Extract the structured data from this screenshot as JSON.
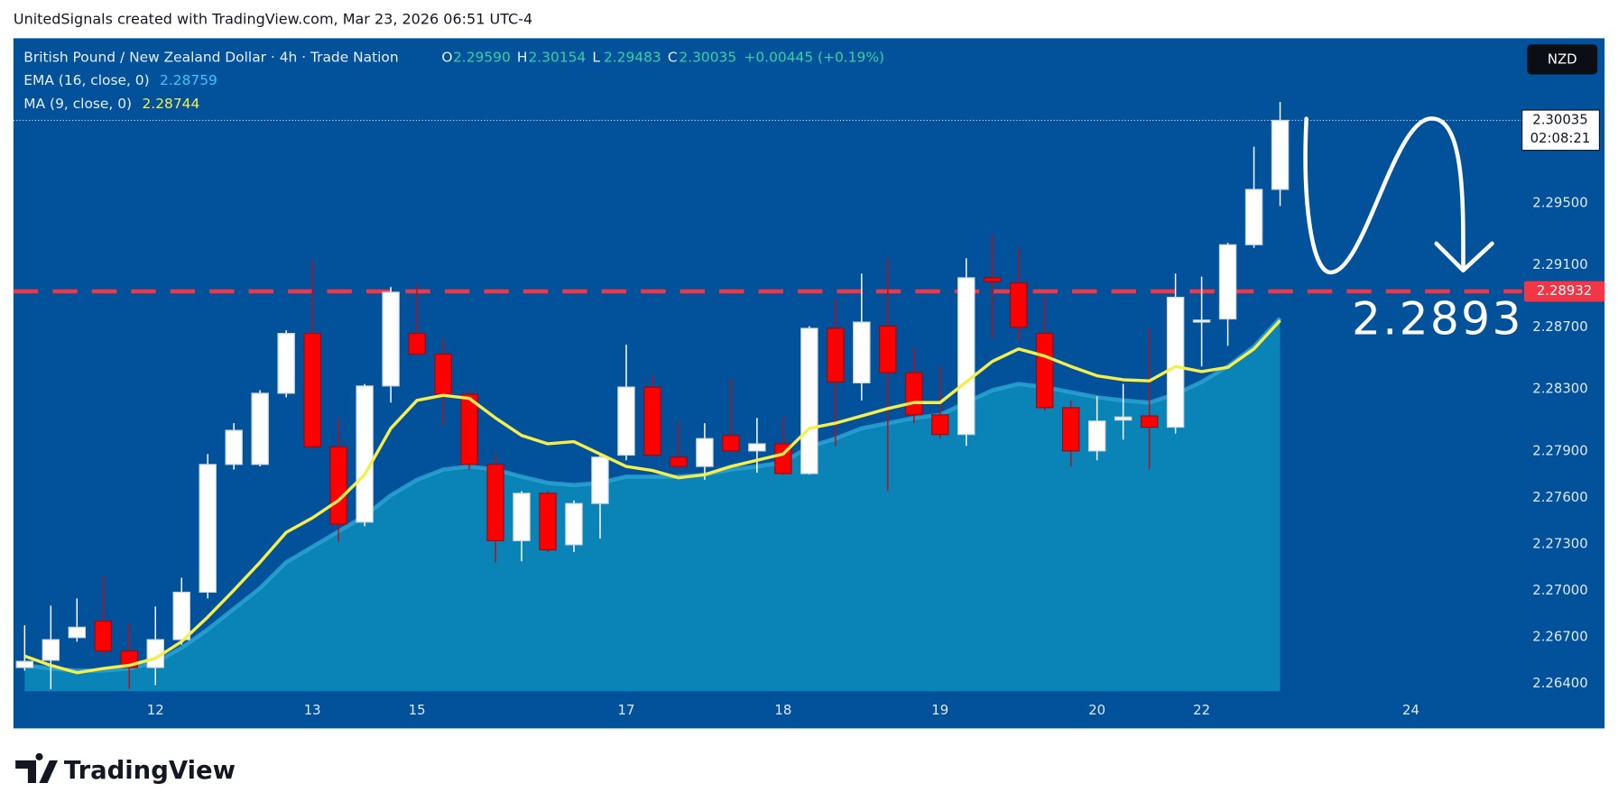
{
  "header": "UnitedSignals created with TradingView.com, Mar 23, 2026 06:51 UTC-4",
  "footer": "TradingView",
  "chart_data": {
    "type": "candlestick",
    "series": [
      {
        "name": "British Pound / New Zealand Dollar · 4h · Trade Nation",
        "up_color": "#ffffff",
        "down_color": "#ff0000",
        "open": [
          2.26506,
          2.26553,
          2.26699,
          2.26806,
          2.26613,
          2.26506,
          2.26686,
          2.26992,
          2.27816,
          2.27816,
          2.28275,
          2.28661,
          2.2793,
          2.27444,
          2.28322,
          2.28661,
          2.28528,
          2.28269,
          2.27816,
          2.27324,
          2.2763,
          2.27298,
          2.27564,
          2.27876,
          2.28315,
          2.27863,
          2.27803,
          2.28003,
          2.27903,
          2.27949,
          2.27757,
          2.28694,
          2.28342,
          2.28708,
          2.28408,
          2.28136,
          2.28009,
          2.2902,
          2.28987,
          2.28661,
          2.28182,
          2.27903,
          2.28102,
          2.28129,
          2.28056,
          2.28734,
          2.28754,
          2.29233,
          2.2959
        ],
        "high": [
          2.26779,
          2.26905,
          2.26952,
          2.27098,
          2.26786,
          2.26899,
          2.27085,
          2.27883,
          2.28082,
          2.28295,
          2.28681,
          2.29133,
          2.28116,
          2.28335,
          2.2896,
          2.2898,
          2.28628,
          2.28295,
          2.27883,
          2.27644,
          2.27644,
          2.27584,
          2.27883,
          2.28588,
          2.28388,
          2.28096,
          2.28082,
          2.28368,
          2.28116,
          2.28122,
          2.28708,
          2.2888,
          2.29047,
          2.29146,
          2.28568,
          2.28448,
          2.29146,
          2.29293,
          2.29213,
          2.289,
          2.28229,
          2.28255,
          2.28335,
          2.28694,
          2.29047,
          2.29027,
          2.29246,
          2.29865,
          2.30154
        ],
        "low": [
          2.26486,
          2.26367,
          2.26673,
          2.2658,
          2.26367,
          2.26393,
          2.26653,
          2.26952,
          2.27783,
          2.27803,
          2.28249,
          2.2791,
          2.27318,
          2.27417,
          2.28215,
          2.28515,
          2.28069,
          2.27783,
          2.27185,
          2.27191,
          2.27251,
          2.27251,
          2.27338,
          2.27843,
          2.27863,
          2.27783,
          2.27717,
          2.27896,
          2.27763,
          2.2775,
          2.2775,
          2.27936,
          2.28229,
          2.27644,
          2.28082,
          2.27983,
          2.27936,
          2.28628,
          2.28614,
          2.28162,
          2.27803,
          2.27843,
          2.27976,
          2.27783,
          2.28016,
          2.28448,
          2.28581,
          2.29213,
          2.29483
        ],
        "close": [
          2.26546,
          2.26686,
          2.26766,
          2.26613,
          2.26506,
          2.26686,
          2.26992,
          2.27816,
          2.28036,
          2.28275,
          2.28661,
          2.2793,
          2.27431,
          2.28322,
          2.28927,
          2.28528,
          2.28269,
          2.27816,
          2.27324,
          2.2763,
          2.27265,
          2.27564,
          2.27863,
          2.28315,
          2.27876,
          2.27803,
          2.27983,
          2.27903,
          2.27949,
          2.27757,
          2.28694,
          2.28348,
          2.28734,
          2.28408,
          2.28136,
          2.28009,
          2.2902,
          2.28994,
          2.28701,
          2.28182,
          2.27903,
          2.28096,
          2.28122,
          2.28056,
          2.28894,
          2.28747,
          2.29233,
          2.2959,
          2.30035
        ]
      }
    ],
    "ohlc_legend": [
      {
        "key": "O",
        "value": "2.29590"
      },
      {
        "key": "H",
        "value": "2.30154"
      },
      {
        "key": "L",
        "value": "2.29483"
      },
      {
        "key": "C",
        "value": "2.30035"
      }
    ],
    "change": "+0.00445 (+0.19%)",
    "overlays": [
      {
        "name": "EMA (16, close, 0)",
        "value_label": "2.28759",
        "style": "area",
        "color": "#2aa3d2",
        "legend_color": "#3cc8f5",
        "fill": "#0a83b7",
        "values": [
          2.2652,
          2.265,
          2.26486,
          2.26486,
          2.265,
          2.2654,
          2.26633,
          2.26752,
          2.26885,
          2.27018,
          2.27185,
          2.27284,
          2.27384,
          2.27484,
          2.27617,
          2.27717,
          2.27783,
          2.27803,
          2.27783,
          2.27737,
          2.27697,
          2.27683,
          2.27697,
          2.27737,
          2.27737,
          2.27737,
          2.2775,
          2.27783,
          2.27803,
          2.2783,
          2.2793,
          2.27983,
          2.28049,
          2.28082,
          2.28116,
          2.28136,
          2.28215,
          2.28295,
          2.28335,
          2.28315,
          2.28282,
          2.28249,
          2.28229,
          2.28215,
          2.28269,
          2.28348,
          2.28448,
          2.28575,
          2.28759
        ]
      },
      {
        "name": "MA (9, close, 0)",
        "value_label": "2.28744",
        "style": "line",
        "color": "#f6ee4c",
        "legend_color": "#f6ee4c",
        "values": [
          2.2658,
          2.2652,
          2.26473,
          2.265,
          2.2652,
          2.26566,
          2.26673,
          2.26832,
          2.27005,
          2.27185,
          2.27378,
          2.27471,
          2.27584,
          2.2775,
          2.28049,
          2.28229,
          2.28262,
          2.28242,
          2.28116,
          2.28003,
          2.27949,
          2.27963,
          2.27883,
          2.27803,
          2.27777,
          2.2773,
          2.2775,
          2.27803,
          2.27843,
          2.27883,
          2.28049,
          2.28082,
          2.28129,
          2.28176,
          2.28215,
          2.28215,
          2.28348,
          2.28481,
          2.28561,
          2.28515,
          2.28448,
          2.28388,
          2.28362,
          2.28355,
          2.28448,
          2.28415,
          2.28442,
          2.28561,
          2.28744
        ]
      }
    ],
    "xlim": [
      -0.43,
      57.25
    ],
    "xticks": [
      {
        "value": 5,
        "label": "12"
      },
      {
        "value": 11,
        "label": "13"
      },
      {
        "value": 15,
        "label": "15"
      },
      {
        "value": 23,
        "label": "17"
      },
      {
        "value": 29,
        "label": "18"
      },
      {
        "value": 35,
        "label": "19"
      },
      {
        "value": 41,
        "label": "20"
      },
      {
        "value": 45,
        "label": "22"
      },
      {
        "value": 53,
        "label": "24"
      }
    ],
    "ylim": [
      2.2629,
      2.3056
    ],
    "yticks": [
      {
        "value": 2.264,
        "label": "2.26400"
      },
      {
        "value": 2.267,
        "label": "2.26700"
      },
      {
        "value": 2.27,
        "label": "2.27000"
      },
      {
        "value": 2.273,
        "label": "2.27300"
      },
      {
        "value": 2.276,
        "label": "2.27600"
      },
      {
        "value": 2.279,
        "label": "2.27900"
      },
      {
        "value": 2.283,
        "label": "2.28300"
      },
      {
        "value": 2.287,
        "label": "2.28700"
      },
      {
        "value": 2.291,
        "label": "2.29100"
      },
      {
        "value": 2.295,
        "label": "2.29500"
      }
    ],
    "grid": false,
    "hline": {
      "value": 2.28932,
      "label": "2.28932",
      "color": "#f23645"
    },
    "target_text": "2.2893",
    "last_price_label": "2.30035",
    "countdown": "02:08:21",
    "currency": "NZD",
    "background": "#02529b"
  }
}
